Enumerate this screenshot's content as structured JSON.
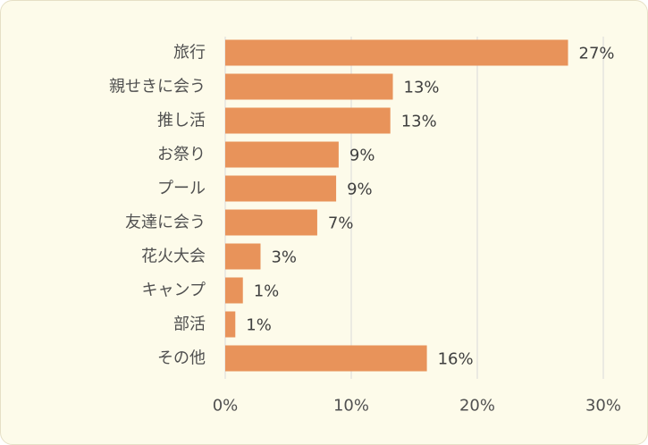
{
  "colors": {
    "bar": "#e8935a",
    "grid": "#d9d9d9",
    "background": "#fdfbea",
    "text": "#505050"
  },
  "chart_data": {
    "type": "bar",
    "orientation": "horizontal",
    "categories": [
      "旅行",
      "親せきに会う",
      "推し活",
      "お祭り",
      "プール",
      "友達に会う",
      "花火大会",
      "キャンプ",
      "部活",
      "その他"
    ],
    "values": [
      27.2,
      13.3,
      13.1,
      9.0,
      8.8,
      7.3,
      2.8,
      1.4,
      0.8,
      16.0
    ],
    "data_labels": [
      "27%",
      "13%",
      "13%",
      "9%",
      "9%",
      "7%",
      "3%",
      "1%",
      "1%",
      "16%"
    ],
    "x_ticks": [
      "0%",
      "10%",
      "20%",
      "30%"
    ],
    "x_tick_values": [
      0,
      10,
      20,
      30
    ],
    "xlim": [
      0,
      30
    ],
    "grid": true,
    "legend": "none",
    "title": "",
    "xlabel": "",
    "ylabel": ""
  }
}
